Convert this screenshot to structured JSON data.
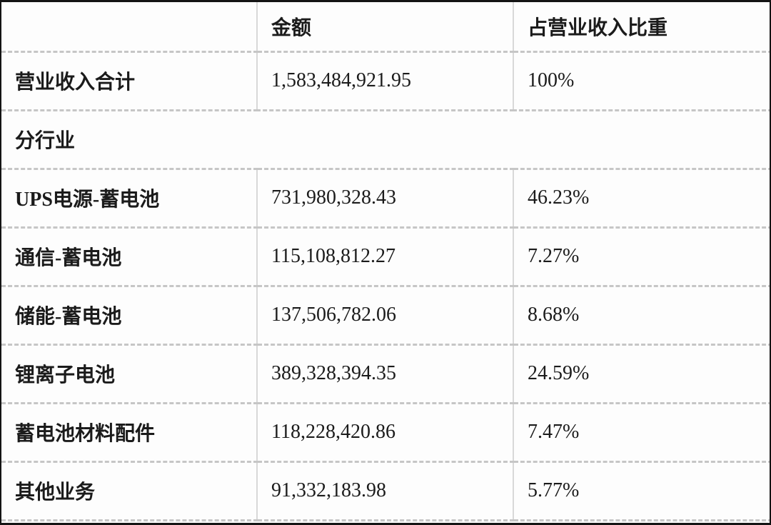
{
  "colors": {
    "outer_border": "#141414",
    "dashed_grid": "#c6c6c6",
    "solid_grid": "#d8d8d8",
    "background": "#fdfdfd",
    "text": "#1b1b1b"
  },
  "table": {
    "columns": [
      "",
      "金额",
      "占营业收入比重"
    ],
    "rows": [
      {
        "label": "营业收入合计",
        "amount": "1,583,484,921.95",
        "share": "100%"
      },
      {
        "label": "分行业",
        "amount": "",
        "share": "",
        "section": true
      },
      {
        "label": "UPS电源-蓄电池",
        "amount": "731,980,328.43",
        "share": "46.23%"
      },
      {
        "label": "通信-蓄电池",
        "amount": "115,108,812.27",
        "share": "7.27%"
      },
      {
        "label": "储能-蓄电池",
        "amount": "137,506,782.06",
        "share": "8.68%"
      },
      {
        "label": "锂离子电池",
        "amount": "389,328,394.35",
        "share": "24.59%"
      },
      {
        "label": "蓄电池材料配件",
        "amount": "118,228,420.86",
        "share": "7.47%"
      },
      {
        "label": "其他业务",
        "amount": "91,332,183.98",
        "share": "5.77%"
      }
    ]
  }
}
